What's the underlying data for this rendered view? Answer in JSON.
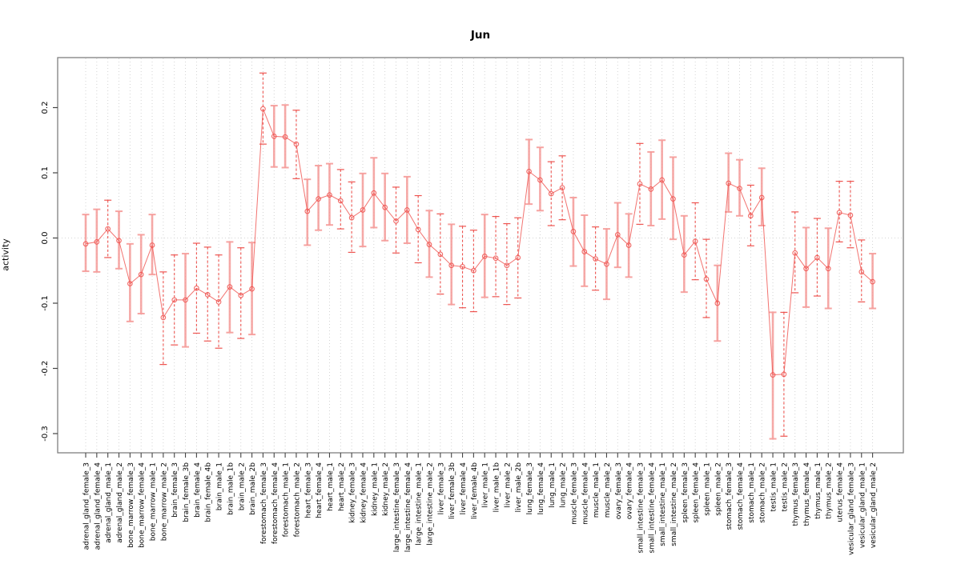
{
  "chart_data": {
    "type": "line",
    "title": "Jun",
    "xlabel": "",
    "ylabel": "activity",
    "ylim": [
      -0.33,
      0.276
    ],
    "grid": "vertical-dotted",
    "legend": "none",
    "zero_reference_line": true,
    "marker": "open-circle",
    "colors": {
      "line": "#ef504c",
      "marker": "#ef504c",
      "errorbar_solid": "#f59a98",
      "errorbar_dashed": "#ec423e",
      "frame": "#808080",
      "grid": "#cfcfcf",
      "tick": "#444444",
      "text": "#000000"
    },
    "ytick_labels": [
      "0.2",
      "0.1",
      "0.0",
      "-0.1",
      "-0.2",
      "-0.3"
    ],
    "ytick_values": [
      0.2,
      0.1,
      0.0,
      -0.1,
      -0.2,
      -0.3
    ],
    "categories": [
      "adrenal_gland_female_3",
      "adrenal_gland_female_4",
      "adrenal_gland_male_1",
      "adrenal_gland_male_2",
      "bone_marrow_female_3",
      "bone_marrow_female_4",
      "bone_marrow_male_1",
      "bone_marrow_male_2",
      "brain_female_3",
      "brain_female_3b",
      "brain_female_4",
      "brain_female_4b",
      "brain_male_1",
      "brain_male_1b",
      "brain_male_2",
      "brain_male_2b",
      "forestomach_female_3",
      "forestomach_female_4",
      "forestomach_male_1",
      "forestomach_male_2",
      "heart_female_3",
      "heart_female_4",
      "heart_male_1",
      "heart_male_2",
      "kidney_female_3",
      "kidney_female_4",
      "kidney_male_1",
      "kidney_male_2",
      "large_intestine_female_3",
      "large_intestine_female_4",
      "large_intestine_male_1",
      "large_intestine_male_2",
      "liver_female_3",
      "liver_female_3b",
      "liver_female_4",
      "liver_female_4b",
      "liver_male_1",
      "liver_male_1b",
      "liver_male_2",
      "liver_male_2b",
      "lung_female_3",
      "lung_female_4",
      "lung_male_1",
      "lung_male_2",
      "muscle_female_3",
      "muscle_female_4",
      "muscle_male_1",
      "muscle_male_2",
      "ovary_female_3",
      "ovary_female_4",
      "small_intestine_female_3",
      "small_intestine_female_4",
      "small_intestine_male_1",
      "small_intestine_male_2",
      "spleen_female_3",
      "spleen_female_4",
      "spleen_male_1",
      "spleen_male_2",
      "stomach_female_3",
      "stomach_female_4",
      "stomach_male_1",
      "stomach_male_2",
      "testis_male_1",
      "testis_male_2",
      "thymus_female_3",
      "thymus_female_4",
      "thymus_male_1",
      "thymus_male_2",
      "uterus_female_4",
      "vesicular_gland_female_3",
      "vesicular_gland_male_1",
      "vesicular_gland_male_2"
    ],
    "series": [
      {
        "name": "activity",
        "values": [
          -0.009,
          -0.006,
          0.014,
          -0.004,
          -0.07,
          -0.056,
          -0.011,
          -0.122,
          -0.095,
          -0.095,
          -0.077,
          -0.087,
          -0.098,
          -0.075,
          -0.088,
          -0.078,
          0.198,
          0.156,
          0.155,
          0.144,
          0.041,
          0.06,
          0.066,
          0.057,
          0.031,
          0.043,
          0.069,
          0.047,
          0.026,
          0.043,
          0.013,
          -0.01,
          -0.025,
          -0.042,
          -0.044,
          -0.05,
          -0.028,
          -0.031,
          -0.042,
          -0.03,
          0.102,
          0.089,
          0.068,
          0.077,
          0.01,
          -0.021,
          -0.032,
          -0.04,
          0.005,
          -0.011,
          0.083,
          0.075,
          0.089,
          0.06,
          -0.026,
          -0.005,
          -0.063,
          -0.1,
          0.084,
          0.076,
          0.034,
          0.062,
          -0.21,
          -0.209,
          -0.023,
          -0.047,
          -0.03,
          -0.047,
          0.039,
          0.035,
          -0.052,
          -0.067
        ],
        "error_low": [
          -0.051,
          -0.052,
          -0.03,
          -0.047,
          -0.128,
          -0.116,
          -0.056,
          -0.194,
          -0.164,
          -0.167,
          -0.146,
          -0.158,
          -0.169,
          -0.145,
          -0.154,
          -0.148,
          0.144,
          0.109,
          0.108,
          0.091,
          -0.011,
          0.012,
          0.02,
          0.014,
          -0.022,
          -0.013,
          0.016,
          -0.004,
          -0.023,
          -0.008,
          -0.038,
          -0.06,
          -0.086,
          -0.102,
          -0.107,
          -0.113,
          -0.091,
          -0.09,
          -0.102,
          -0.092,
          0.052,
          0.042,
          0.019,
          0.028,
          -0.043,
          -0.074,
          -0.08,
          -0.094,
          -0.045,
          -0.06,
          0.021,
          0.019,
          0.029,
          -0.002,
          -0.083,
          -0.064,
          -0.122,
          -0.158,
          0.04,
          0.034,
          -0.012,
          0.019,
          -0.308,
          -0.304,
          -0.084,
          -0.106,
          -0.089,
          -0.108,
          -0.006,
          -0.015,
          -0.098,
          -0.108
        ],
        "error_high": [
          0.036,
          0.044,
          0.058,
          0.041,
          -0.009,
          0.005,
          0.036,
          -0.052,
          -0.026,
          -0.024,
          -0.008,
          -0.014,
          -0.026,
          -0.006,
          -0.015,
          -0.007,
          0.253,
          0.203,
          0.204,
          0.196,
          0.09,
          0.111,
          0.114,
          0.105,
          0.086,
          0.099,
          0.123,
          0.099,
          0.078,
          0.094,
          0.065,
          0.042,
          0.037,
          0.021,
          0.018,
          0.012,
          0.036,
          0.033,
          0.022,
          0.031,
          0.151,
          0.139,
          0.117,
          0.126,
          0.062,
          0.035,
          0.017,
          0.014,
          0.054,
          0.037,
          0.145,
          0.132,
          0.15,
          0.124,
          0.034,
          0.054,
          -0.002,
          -0.042,
          0.13,
          0.12,
          0.081,
          0.107,
          -0.114,
          -0.114,
          0.04,
          0.016,
          0.03,
          0.015,
          0.087,
          0.087,
          -0.003,
          -0.024
        ],
        "bar_styles": [
          "s",
          "s",
          "d",
          "s",
          "s",
          "s",
          "s",
          "d",
          "d",
          "s",
          "d",
          "d",
          "d",
          "s",
          "d",
          "s",
          "d",
          "s",
          "s",
          "d",
          "s",
          "s",
          "s",
          "d",
          "d",
          "s",
          "s",
          "s",
          "d",
          "s",
          "d",
          "s",
          "d",
          "s",
          "d",
          "d",
          "s",
          "d",
          "d",
          "d",
          "s",
          "s",
          "d",
          "d",
          "s",
          "s",
          "d",
          "s",
          "s",
          "s",
          "d",
          "s",
          "s",
          "s",
          "s",
          "d",
          "d",
          "s",
          "s",
          "s",
          "d",
          "s",
          "s",
          "d",
          "d",
          "s",
          "d",
          "s",
          "d",
          "d",
          "d",
          "s"
        ]
      }
    ]
  }
}
